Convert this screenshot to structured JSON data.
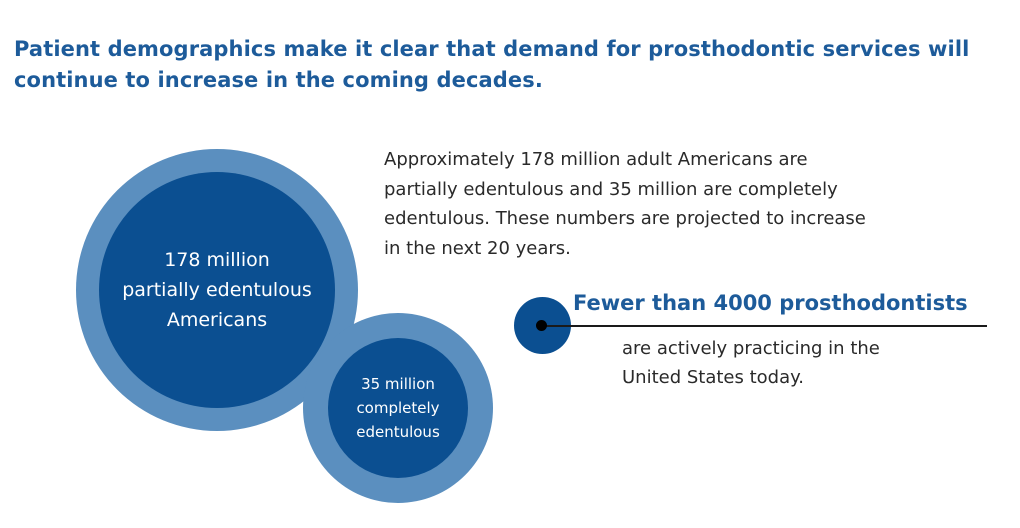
{
  "headline": {
    "line1": "Patient demographics make it clear that demand for prosthodontic services will",
    "line2": "continue to increase in the coming decades."
  },
  "colors": {
    "headline": "#1d5b9a",
    "ring": "#5b8fbf",
    "fill": "#0b4f91",
    "body_text": "#2a2a2a"
  },
  "circles": {
    "partial": {
      "line1": "178 million",
      "line2": "partially edentulous",
      "line3": "Americans",
      "value_millions": 178
    },
    "complete": {
      "line1": "35 million",
      "line2": "completely",
      "line3": "edentulous",
      "value_millions": 35
    }
  },
  "description": {
    "line1": "Approximately 178 million adult Americans are",
    "line2": "partially edentulous and 35 million are completely",
    "line3": "edentulous. These numbers are projected to increase",
    "line4": "in the next 20 years."
  },
  "callout": {
    "title": "Fewer than 4000 prosthodontists",
    "line1": "are actively practicing in the",
    "line2": "United States today."
  }
}
